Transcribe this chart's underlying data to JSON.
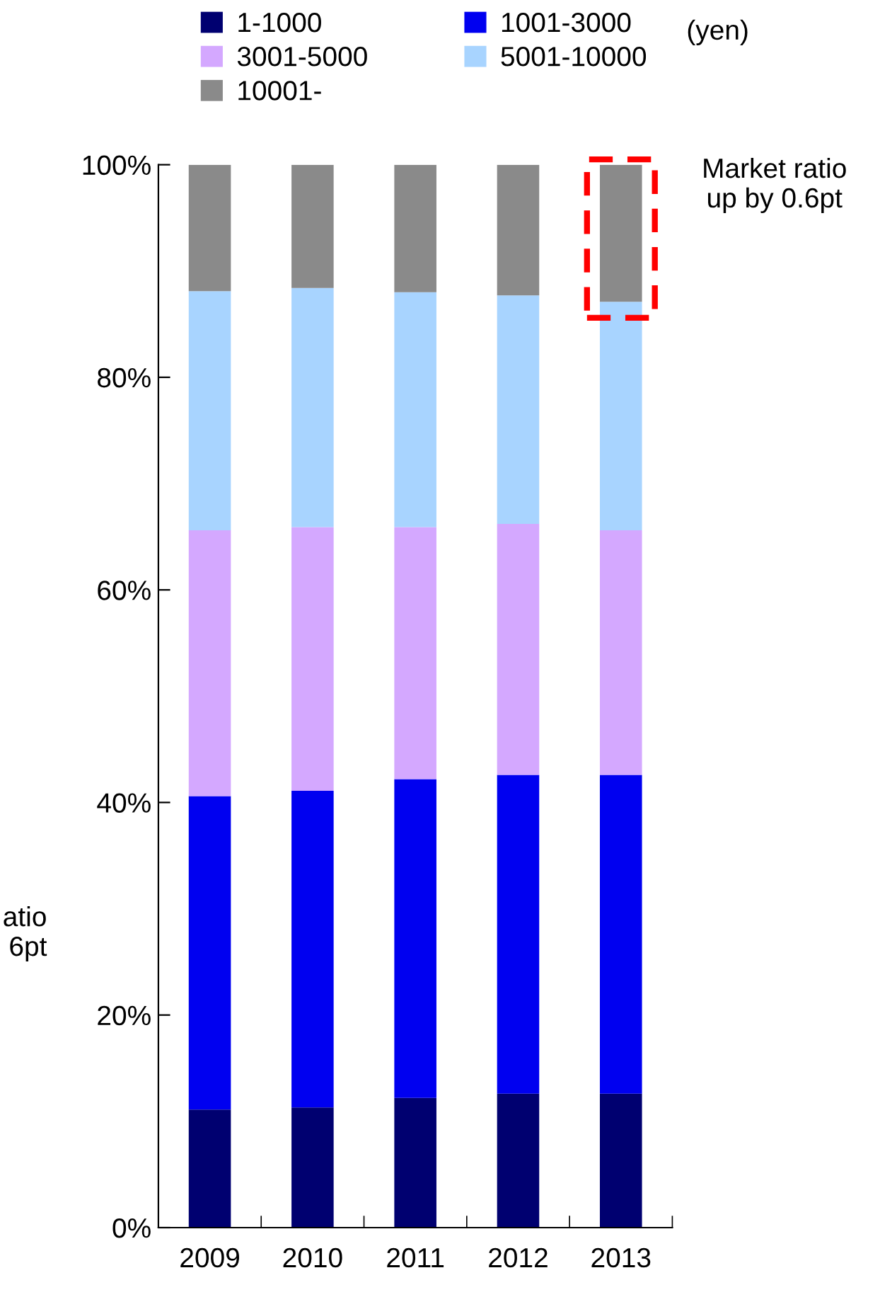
{
  "chart_data": {
    "type": "bar",
    "stacked": true,
    "categories": [
      "2009",
      "2010",
      "2011",
      "2012",
      "2013"
    ],
    "series": [
      {
        "name": "1-1000",
        "color": "#000070",
        "values": [
          11.1,
          11.3,
          12.2,
          12.6,
          12.6
        ]
      },
      {
        "name": "1001-3000",
        "color": "#0000f0",
        "values": [
          29.5,
          29.8,
          30.0,
          30.0,
          30.0
        ]
      },
      {
        "name": "3001-5000",
        "color": "#d4a8ff",
        "values": [
          25.0,
          24.8,
          23.7,
          23.6,
          23.0
        ]
      },
      {
        "name": "5001-10000",
        "color": "#a8d4ff",
        "values": [
          22.5,
          22.5,
          22.1,
          21.5,
          21.5
        ]
      },
      {
        "name": "10001-",
        "color": "#8a8a8a",
        "values": [
          11.9,
          11.6,
          12.0,
          12.3,
          12.9
        ]
      }
    ],
    "legend_title": "(yen)",
    "legend": "top",
    "ylim": [
      0,
      100
    ],
    "yticks": [
      {
        "value": 0,
        "label": "0%"
      },
      {
        "value": 20,
        "label": "20%"
      },
      {
        "value": 40,
        "label": "40%"
      },
      {
        "value": 60,
        "label": "60%"
      },
      {
        "value": 80,
        "label": "80%"
      },
      {
        "value": 100,
        "label": "100%"
      }
    ],
    "annotations": [
      "Market ratio\nup by 0.6pt",
      "atio\n6pt"
    ],
    "grid": false
  }
}
